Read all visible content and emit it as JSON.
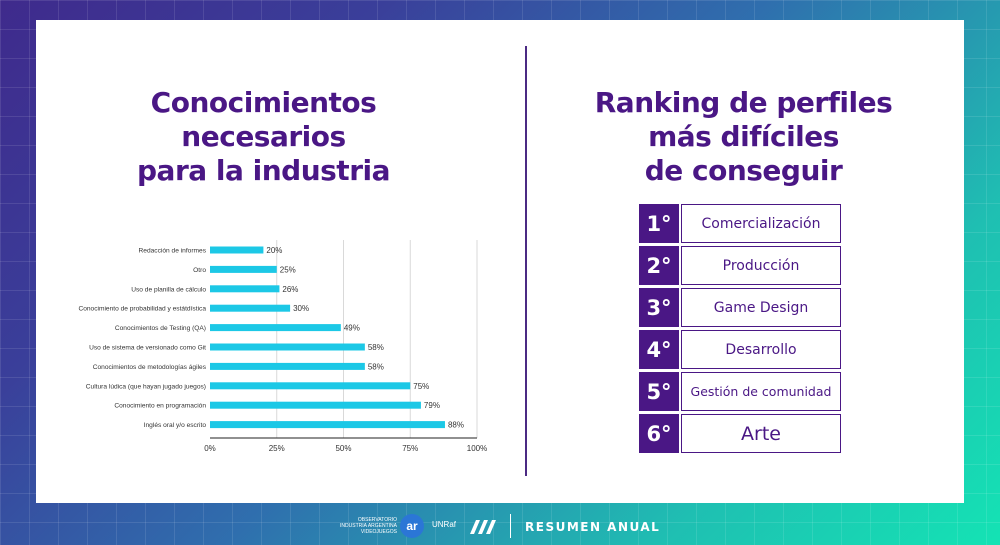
{
  "left_heading": "Conocimientos\nnecesarios\npara la industria",
  "right_heading": "Ranking de perfiles\nmás difíciles\nde conseguir",
  "chart_data": {
    "type": "bar",
    "orientation": "horizontal",
    "categories": [
      "Redacción de informes",
      "Otro",
      "Uso de planilla de cálculo",
      "Conocimiento de probabilidad y estátdística",
      "Conocimientos de Testing (QA)",
      "Uso de sistema de versionado como Git",
      "Conocimientos de metodologías ágiles",
      "Cultura lúdica (que hayan jugado juegos)",
      "Conocimiento en programación",
      "Inglés oral y/o escrito"
    ],
    "values": [
      20,
      25,
      26,
      30,
      49,
      58,
      58,
      75,
      79,
      88
    ],
    "value_labels": [
      "20%",
      "25%",
      "26%",
      "30%",
      "49%",
      "58%",
      "58%",
      "75%",
      "79%",
      "88%"
    ],
    "xticks": [
      "0%",
      "25%",
      "50%",
      "75%",
      "100%"
    ],
    "xlim": [
      0,
      100
    ],
    "grid": "vertical",
    "bar_color": "#1cc8e6"
  },
  "ranking": [
    {
      "pos": "1°",
      "label": "Comercialización"
    },
    {
      "pos": "2°",
      "label": "Producción"
    },
    {
      "pos": "3°",
      "label": "Game Design"
    },
    {
      "pos": "4°",
      "label": "Desarrollo"
    },
    {
      "pos": "5°",
      "label": "Gestión de comunidad"
    },
    {
      "pos": "6°",
      "label": "Arte"
    }
  ],
  "footer": {
    "observatorio_lines": [
      "OBSERVATORIO",
      "INDUSTRIA ARGENTINA",
      "VIDEOJUEGOS"
    ],
    "ar_logo": "ar",
    "unraf": "UNRaf",
    "summary": "RESUMEN ANUAL"
  },
  "colors": {
    "heading": "#4a1785",
    "bar": "#1cc8e6",
    "rank_box": "#4a1785"
  }
}
